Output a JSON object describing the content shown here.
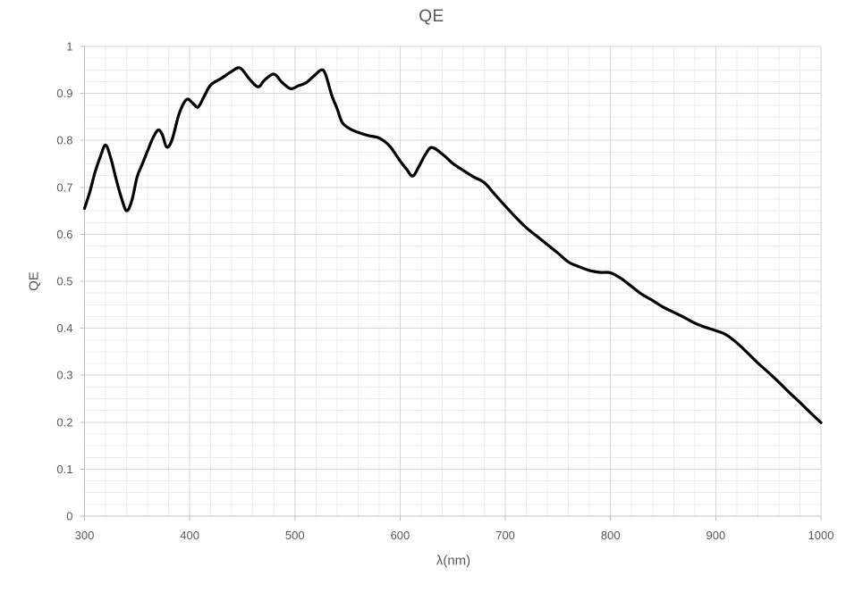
{
  "colors": {
    "text": "#595959",
    "axis_line": "#bfbfbf",
    "grid_major": "#d6d6d6",
    "grid_minor": "#ececec",
    "background": "#ffffff"
  },
  "chart_data": {
    "type": "line",
    "title": "QE",
    "xlabel": "λ(nm)",
    "ylabel": "QE",
    "legend": "none",
    "grid": "major+minor",
    "xlim": [
      300,
      1000
    ],
    "ylim": [
      0,
      1
    ],
    "x_major_step": 100,
    "x_minor_step": 20,
    "y_major_step": 0.1,
    "y_minor_step": 0.025,
    "x_tick_values": [
      300,
      400,
      500,
      600,
      700,
      800,
      900,
      1000
    ],
    "x_tick_labels": [
      "300",
      "400",
      "500",
      "600",
      "700",
      "800",
      "900",
      "1000"
    ],
    "y_tick_values": [
      0,
      0.1,
      0.2,
      0.3,
      0.4,
      0.5,
      0.6,
      0.7,
      0.8,
      0.9,
      1
    ],
    "y_tick_labels": [
      "0",
      "0.1",
      "0.2",
      "0.3",
      "0.4",
      "0.5",
      "0.6",
      "0.7",
      "0.8",
      "0.9",
      "1"
    ],
    "line_color": "#000000",
    "line_width": 3.2,
    "series": [
      {
        "name": "QE",
        "points": [
          [
            300,
            0.655
          ],
          [
            305,
            0.69
          ],
          [
            310,
            0.732
          ],
          [
            315,
            0.765
          ],
          [
            320,
            0.79
          ],
          [
            325,
            0.762
          ],
          [
            330,
            0.718
          ],
          [
            335,
            0.678
          ],
          [
            340,
            0.65
          ],
          [
            345,
            0.672
          ],
          [
            350,
            0.722
          ],
          [
            355,
            0.75
          ],
          [
            360,
            0.778
          ],
          [
            365,
            0.805
          ],
          [
            370,
            0.822
          ],
          [
            374,
            0.812
          ],
          [
            378,
            0.786
          ],
          [
            383,
            0.8
          ],
          [
            390,
            0.857
          ],
          [
            397,
            0.887
          ],
          [
            403,
            0.879
          ],
          [
            408,
            0.871
          ],
          [
            414,
            0.895
          ],
          [
            420,
            0.918
          ],
          [
            430,
            0.932
          ],
          [
            440,
            0.947
          ],
          [
            448,
            0.954
          ],
          [
            457,
            0.93
          ],
          [
            465,
            0.914
          ],
          [
            471,
            0.928
          ],
          [
            480,
            0.941
          ],
          [
            488,
            0.923
          ],
          [
            496,
            0.91
          ],
          [
            503,
            0.916
          ],
          [
            510,
            0.922
          ],
          [
            518,
            0.937
          ],
          [
            525,
            0.95
          ],
          [
            529,
            0.941
          ],
          [
            535,
            0.896
          ],
          [
            540,
            0.868
          ],
          [
            545,
            0.838
          ],
          [
            552,
            0.825
          ],
          [
            560,
            0.817
          ],
          [
            570,
            0.81
          ],
          [
            580,
            0.805
          ],
          [
            590,
            0.788
          ],
          [
            600,
            0.756
          ],
          [
            606,
            0.739
          ],
          [
            612,
            0.724
          ],
          [
            618,
            0.745
          ],
          [
            624,
            0.77
          ],
          [
            630,
            0.785
          ],
          [
            640,
            0.771
          ],
          [
            650,
            0.751
          ],
          [
            660,
            0.736
          ],
          [
            670,
            0.722
          ],
          [
            680,
            0.71
          ],
          [
            690,
            0.685
          ],
          [
            700,
            0.66
          ],
          [
            710,
            0.636
          ],
          [
            720,
            0.614
          ],
          [
            730,
            0.596
          ],
          [
            740,
            0.578
          ],
          [
            750,
            0.56
          ],
          [
            760,
            0.541
          ],
          [
            770,
            0.531
          ],
          [
            780,
            0.523
          ],
          [
            790,
            0.519
          ],
          [
            800,
            0.518
          ],
          [
            810,
            0.506
          ],
          [
            820,
            0.489
          ],
          [
            830,
            0.472
          ],
          [
            840,
            0.459
          ],
          [
            850,
            0.445
          ],
          [
            860,
            0.434
          ],
          [
            870,
            0.423
          ],
          [
            880,
            0.411
          ],
          [
            890,
            0.402
          ],
          [
            900,
            0.395
          ],
          [
            910,
            0.386
          ],
          [
            920,
            0.369
          ],
          [
            930,
            0.348
          ],
          [
            940,
            0.326
          ],
          [
            950,
            0.306
          ],
          [
            960,
            0.285
          ],
          [
            970,
            0.263
          ],
          [
            980,
            0.242
          ],
          [
            990,
            0.22
          ],
          [
            1000,
            0.199
          ]
        ]
      }
    ]
  }
}
